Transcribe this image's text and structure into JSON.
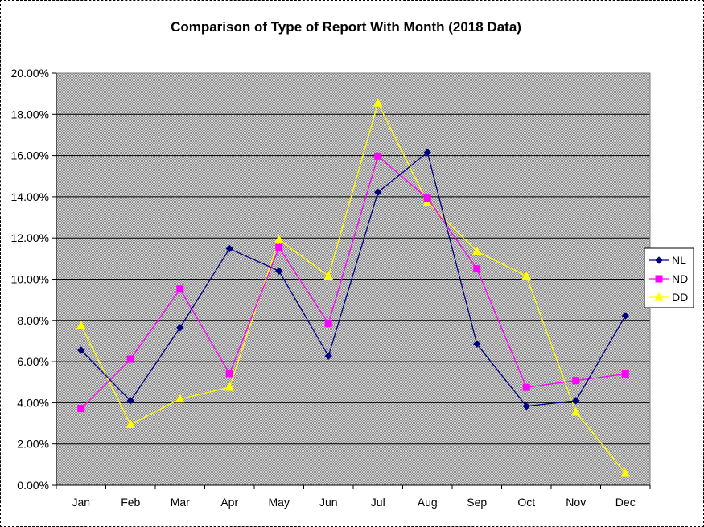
{
  "chart_data": {
    "type": "line",
    "title": "Comparison of Type of Report With Month (2018 Data)",
    "xlabel": "",
    "ylabel": "",
    "categories": [
      "Jan",
      "Feb",
      "Mar",
      "Apr",
      "May",
      "Jun",
      "Jul",
      "Aug",
      "Sep",
      "Oct",
      "Nov",
      "Dec"
    ],
    "ylim": [
      0,
      0.2
    ],
    "yticks": [
      "0.00%",
      "2.00%",
      "4.00%",
      "6.00%",
      "8.00%",
      "10.00%",
      "12.00%",
      "14.00%",
      "16.00%",
      "18.00%",
      "20.00%"
    ],
    "grid": true,
    "legend_position": "right",
    "plot_background": "#c0c0c0",
    "series": [
      {
        "name": "NL",
        "color": "#000080",
        "marker": "diamond",
        "values": [
          0.0655,
          0.041,
          0.0765,
          0.1148,
          0.104,
          0.0627,
          0.1422,
          0.1615,
          0.0685,
          0.0383,
          0.041,
          0.0822
        ]
      },
      {
        "name": "ND",
        "color": "#ff00ff",
        "marker": "square",
        "values": [
          0.0372,
          0.0612,
          0.0952,
          0.0542,
          0.1153,
          0.0785,
          0.1597,
          0.1393,
          0.105,
          0.0475,
          0.0508,
          0.054
        ]
      },
      {
        "name": "DD",
        "color": "#ffff00",
        "marker": "triangle",
        "values": [
          0.0775,
          0.0295,
          0.0418,
          0.0475,
          0.1192,
          0.1015,
          0.1855,
          0.1372,
          0.1135,
          0.1015,
          0.0355,
          0.0058
        ]
      }
    ]
  }
}
